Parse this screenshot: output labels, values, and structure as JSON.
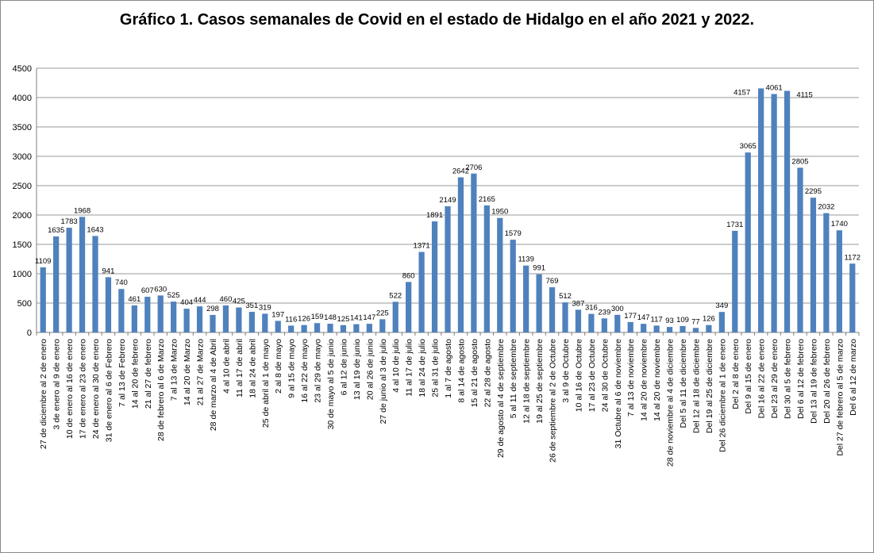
{
  "chart_data": {
    "type": "bar",
    "title": "Gráfico 1. Casos semanales de Covid en el estado de Hidalgo en el año 2021 y 2022.",
    "xlabel": "",
    "ylabel": "",
    "ylim": [
      0,
      4500
    ],
    "yticks": [
      0,
      500,
      1000,
      1500,
      2000,
      2500,
      3000,
      3500,
      4000,
      4500
    ],
    "grid": true,
    "legend": "none",
    "bar_color": "#4f81bd",
    "categories": [
      "27 de diciembre al 2 de enero",
      "3 de enero al 9 de enero",
      "10 de enero al 16 de enero",
      "17 de enero al 23 de enero",
      "24 de enero al 30 de enero",
      "31 de enero al 6 de Febrero",
      "7 al 13 de Febrero",
      "14 al 20 de febrero",
      "21 al 27 de febrero",
      "28 de febrero al 6 de Marzo",
      "7 al 13 de Marzo",
      "14 al 20 de Marzo",
      "21 al 27 de Marzo",
      "28 de marzo al 4 de Abril",
      "4 al 10 de abril",
      "11 al 17 de abril",
      "18 al 24 de abril",
      "25 de abril al 1 de mayo",
      "2 al 8 de mayo",
      "9 al 15 de mayo",
      "16 al 22 de mayo",
      "23 al 29 de mayo",
      "30 de mayo al 5 de junio",
      "6 al 12 de junio",
      "13 al 19 de junio",
      "20 al 26 de junio",
      "27 de junio al 3 de julio",
      "4 al 10 de julio",
      "11 al 17 de julio",
      "18 al 24 de julio",
      "25 al 31 de julio",
      "1 al 7 de agosto",
      "8 al 14 de agosto",
      "15 al 21 de agosto",
      "22 al 28 de agosto",
      "29 de agosto al 4 de septiembre",
      "5 al 11 de septiembre",
      "12 al 18 de septiembre",
      "19 al 25 de septiembre",
      "26 de septiembre al 2 de Octubre",
      "3 al 9 de Octubre",
      "10 al 16 de Octubre",
      "17 al 23 de Octubre",
      "24 al 30 de Octubre",
      "31 Octubre al 6 de noviembre",
      "7 al 13 de noviembre",
      "14 al 20 de noviembre",
      "14 al 20 de noviembre",
      "28 de noviembre al 4 de diciembre",
      "Del 5 al 11 de diciembre",
      "Del 12 al 18 de diciembre",
      "Del 19 al 25 de diciembre",
      "Del 26 diciembre al 1 de enero",
      "Del 2 al 8 de enero",
      "Del 9 al 15 de enero",
      "Del 16 al 22 de enero",
      "Del 23 al 29 de enero",
      "Del 30 al 5 de febrero",
      "Del 6 al 12 de febrero",
      "Del 13 al 19 de febrero",
      "Del 20 al 26 de febrero",
      "Del 27 de febrero al 5 de marzo",
      "Del 6 al 12 de marzo"
    ],
    "values": [
      1109,
      1635,
      1783,
      1968,
      1643,
      941,
      740,
      461,
      607,
      630,
      525,
      404,
      444,
      298,
      460,
      425,
      351,
      319,
      197,
      116,
      126,
      159,
      148,
      125,
      141,
      147,
      225,
      522,
      860,
      1371,
      1891,
      2149,
      2642,
      2706,
      2165,
      1950,
      1579,
      1139,
      991,
      769,
      512,
      387,
      316,
      239,
      300,
      177,
      147,
      117,
      93,
      109,
      77,
      126,
      349,
      1731,
      3065,
      4157,
      4061,
      4115,
      2805,
      2295,
      2032,
      1740,
      1172
    ]
  }
}
